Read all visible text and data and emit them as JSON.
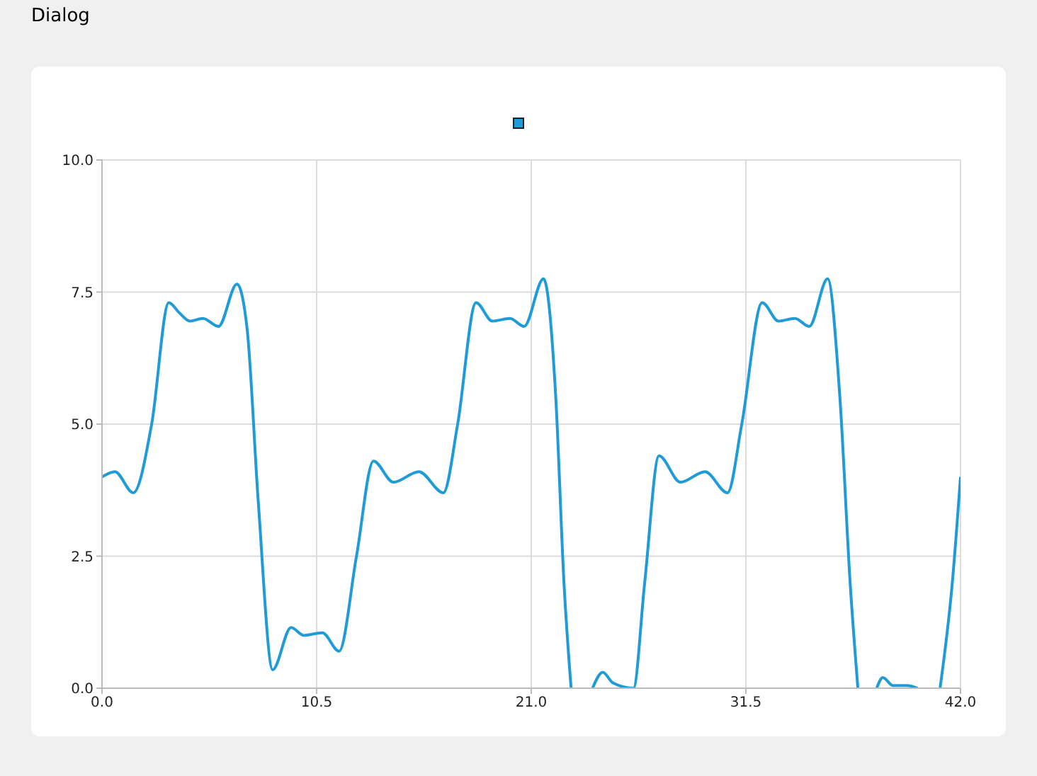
{
  "chart_data": {
    "type": "line",
    "annotations": [
      "Dialog"
    ],
    "x": [
      0,
      0.63,
      1.53,
      2.43,
      3.27,
      3.8,
      4.3,
      4.94,
      5.7,
      6.6,
      7.1,
      7.65,
      8.35,
      9.25,
      9.87,
      10.78,
      11.6,
      12.45,
      13.28,
      14.26,
      15.5,
      16.7,
      17.4,
      18.3,
      19.1,
      19.96,
      20.65,
      21.6,
      22.2,
      22.6,
      22.95,
      23.5,
      24,
      24.5,
      25,
      26,
      26.55,
      27.25,
      28.3,
      29.5,
      30.6,
      31.3,
      32.3,
      33.1,
      33.9,
      34.6,
      35.5,
      36.1,
      36.6,
      36.98,
      37.5,
      37.9,
      38.2,
      38.7,
      39.4,
      39.9,
      40.5,
      41,
      41.6,
      42
    ],
    "series": [
      {
        "color": "#1f9bd8",
        "values": [
          4.0,
          4.1,
          3.7,
          5.0,
          7.3,
          7.1,
          6.95,
          7.0,
          6.85,
          7.65,
          6.8,
          3.5,
          0.35,
          1.15,
          1.0,
          1.05,
          0.7,
          2.5,
          4.3,
          3.9,
          4.1,
          3.7,
          5.0,
          7.3,
          6.95,
          7.0,
          6.85,
          7.75,
          5.5,
          2.0,
          0,
          null,
          0,
          0.3,
          0.1,
          0,
          2.0,
          4.4,
          3.9,
          4.1,
          3.7,
          5.0,
          7.3,
          6.95,
          7.0,
          6.85,
          7.75,
          5.5,
          2.0,
          0,
          null,
          0,
          0.2,
          0.05,
          0.05,
          0,
          null,
          0,
          2.0,
          4.0
        ]
      }
    ],
    "xlim": [
      0,
      42
    ],
    "xticks": [
      {
        "value": 0,
        "label": "0.0"
      },
      {
        "value": 10.5,
        "label": "10.5"
      },
      {
        "value": 21,
        "label": "21.0"
      },
      {
        "value": 31.5,
        "label": "31.5"
      },
      {
        "value": 42,
        "label": "42.0"
      }
    ],
    "ylim": [
      0,
      10
    ],
    "yticks": [
      {
        "value": 0,
        "label": "0.0"
      },
      {
        "value": 2.5,
        "label": "2.5"
      },
      {
        "value": 5,
        "label": "5.0"
      },
      {
        "value": 7.5,
        "label": "7.5"
      },
      {
        "value": 10,
        "label": "10.0"
      }
    ],
    "grid": true,
    "marker": "none",
    "line_style": "solid"
  }
}
